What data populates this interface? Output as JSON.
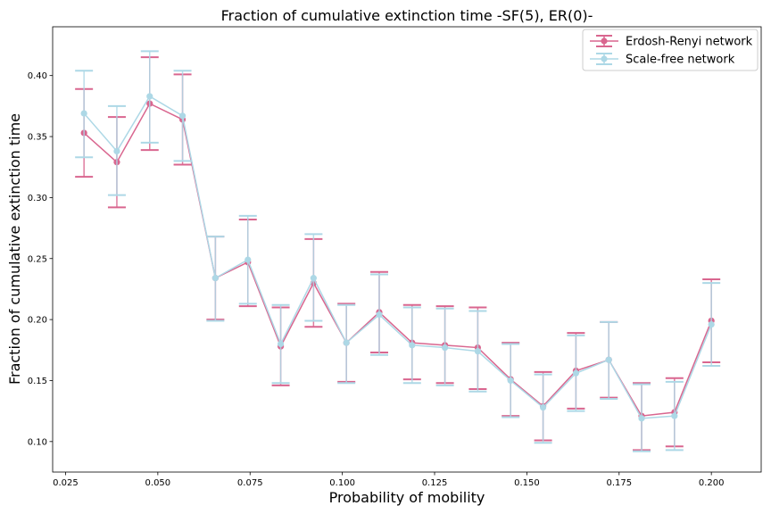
{
  "chart_data": {
    "type": "line",
    "title": "Fraction of cumulative extinction time -SF(5), ER(0)-",
    "xlabel": "Probability of mobility",
    "ylabel": "Fraction of cumulative extinction time",
    "xlim": [
      0.0215,
      0.2135
    ],
    "ylim": [
      0.075,
      0.44
    ],
    "xticks": [
      0.025,
      0.05,
      0.075,
      0.1,
      0.125,
      0.15,
      0.175,
      0.2
    ],
    "xtick_labels": [
      "0.025",
      "0.050",
      "0.075",
      "0.100",
      "0.125",
      "0.150",
      "0.175",
      "0.200"
    ],
    "yticks": [
      0.1,
      0.15,
      0.2,
      0.25,
      0.3,
      0.35,
      0.4
    ],
    "ytick_labels": [
      "0.10",
      "0.15",
      "0.20",
      "0.25",
      "0.30",
      "0.35",
      "0.40"
    ],
    "grid": false,
    "legend_position": "top-right",
    "x": [
      0.03,
      0.0389,
      0.0478,
      0.0567,
      0.0656,
      0.0744,
      0.0833,
      0.0922,
      0.1011,
      0.11,
      0.1189,
      0.1278,
      0.1367,
      0.1456,
      0.1544,
      0.1633,
      0.1722,
      0.1811,
      0.19,
      0.2
    ],
    "series": [
      {
        "name": "Erdosh-Renyi network",
        "color": "#d9668f",
        "values": [
          0.353,
          0.329,
          0.377,
          0.364,
          0.234,
          0.247,
          0.178,
          0.23,
          0.181,
          0.206,
          0.181,
          0.179,
          0.177,
          0.151,
          0.129,
          0.158,
          0.167,
          0.121,
          0.124,
          0.199
        ],
        "lower": [
          0.317,
          0.292,
          0.339,
          0.327,
          0.2,
          0.211,
          0.146,
          0.194,
          0.149,
          0.173,
          0.151,
          0.148,
          0.143,
          0.121,
          0.101,
          0.127,
          0.136,
          0.093,
          0.096,
          0.165
        ],
        "upper": [
          0.389,
          0.366,
          0.415,
          0.401,
          0.268,
          0.282,
          0.21,
          0.266,
          0.213,
          0.239,
          0.212,
          0.211,
          0.21,
          0.181,
          0.157,
          0.189,
          0.198,
          0.148,
          0.152,
          0.233
        ]
      },
      {
        "name": "Scale-free network",
        "color": "#add8e6",
        "values": [
          0.369,
          0.338,
          0.383,
          0.367,
          0.234,
          0.249,
          0.18,
          0.234,
          0.181,
          0.204,
          0.179,
          0.177,
          0.174,
          0.15,
          0.128,
          0.156,
          0.167,
          0.119,
          0.121,
          0.196
        ],
        "lower": [
          0.333,
          0.302,
          0.345,
          0.33,
          0.199,
          0.213,
          0.148,
          0.199,
          0.148,
          0.171,
          0.148,
          0.146,
          0.141,
          0.12,
          0.099,
          0.125,
          0.135,
          0.092,
          0.093,
          0.162
        ],
        "upper": [
          0.404,
          0.375,
          0.42,
          0.404,
          0.268,
          0.285,
          0.212,
          0.27,
          0.212,
          0.237,
          0.21,
          0.209,
          0.207,
          0.18,
          0.155,
          0.187,
          0.198,
          0.147,
          0.149,
          0.23
        ]
      }
    ]
  }
}
